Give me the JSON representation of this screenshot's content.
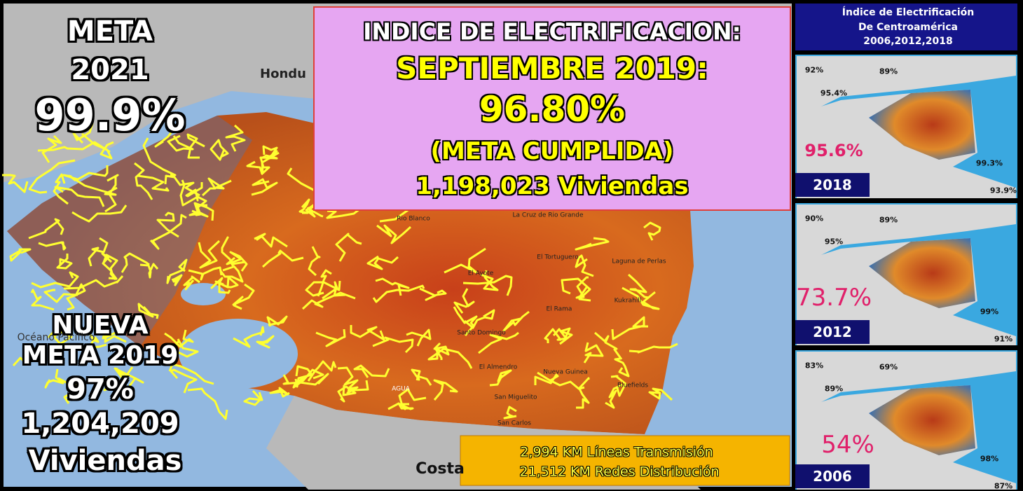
{
  "goal_2021": {
    "lines": [
      "META",
      "2021",
      "99.9%"
    ]
  },
  "new_goal_2019": {
    "lines": [
      "NUEVA",
      "META 2019",
      "97%",
      "1,204,209",
      "Viviendas"
    ]
  },
  "headline": {
    "lines": [
      "INDICE DE ELECTRIFICACION:",
      "SEPTIEMBRE 2019:",
      "96.80%",
      "(META CUMPLIDA)",
      "1,198,023 Viviendas"
    ]
  },
  "network": {
    "lines": [
      "2,994 KM Líneas Transmisión",
      "21,512 KM Redes Distribución"
    ]
  },
  "map_labels": [
    "Hondu",
    "Costa",
    "Océano Pacífico",
    "La Cruz de Rio Grande",
    "Rio Blanco",
    "El Tortuguero",
    "Laguna de Perlas",
    "El Ayote",
    "El Rama",
    "Kukrahill",
    "Bluefields",
    "El Almendro",
    "Nueva Guinea",
    "San Miguelito",
    "San Carlos",
    "AGUA",
    "Santo Domingo"
  ],
  "side_panel": {
    "title": [
      "Índice de Electrificación",
      "De Centroamérica",
      "2006,2012,2018"
    ],
    "maps": [
      {
        "year": "2018",
        "national": "95.6%",
        "regions": [
          "92%",
          "89%",
          "95.4%",
          "99.3%",
          "93.9%"
        ]
      },
      {
        "year": "2012",
        "national": "73.7%",
        "regions": [
          "90%",
          "89%",
          "95%",
          "99%",
          "91%"
        ]
      },
      {
        "year": "2006",
        "national": "54%",
        "regions": [
          "83%",
          "69%",
          "89%",
          "98%",
          "87%"
        ]
      }
    ]
  }
}
